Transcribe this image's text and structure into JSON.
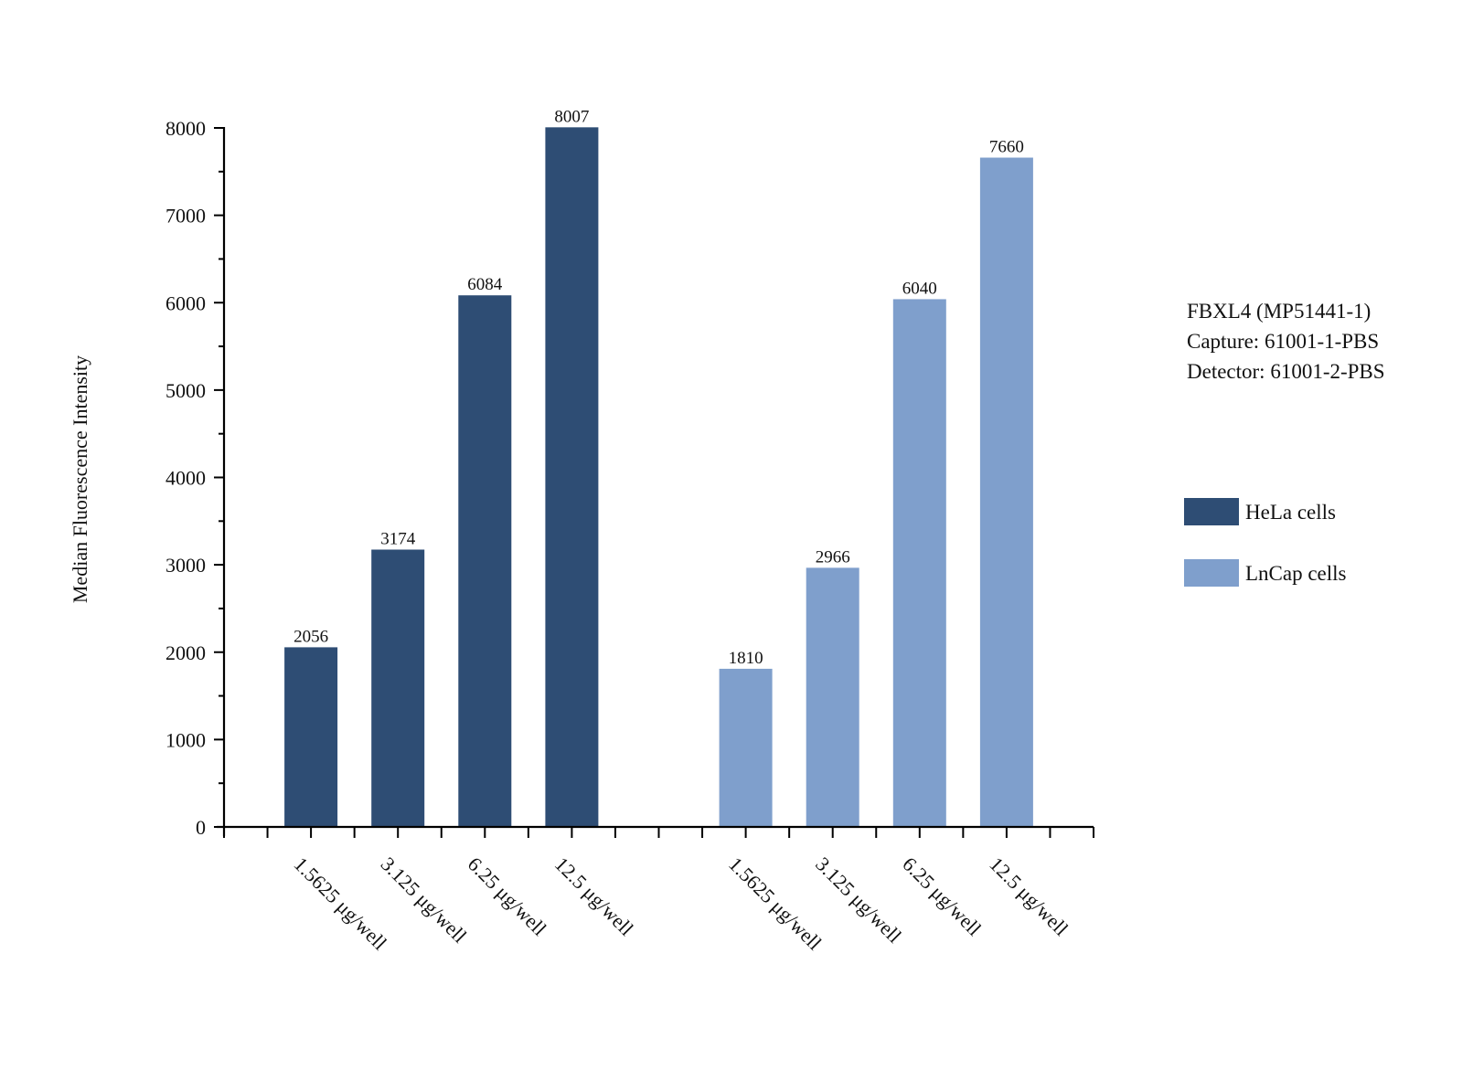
{
  "chart_data": {
    "type": "bar",
    "title": "",
    "xlabel": "",
    "ylabel": "Median Fluorescence Intensity",
    "ylim": [
      0,
      8000
    ],
    "yticks": [
      0,
      1000,
      2000,
      3000,
      4000,
      5000,
      6000,
      7000,
      8000
    ],
    "grid": false,
    "legend_position": "right",
    "info": [
      "FBXL4 (MP51441-1)",
      "Capture: 61001-1-PBS",
      "Detector: 61001-2-PBS"
    ],
    "categories": [
      "1.5625 μg/well",
      "3.125 μg/well",
      "6.25 μg/well",
      "12.5 μg/well"
    ],
    "series": [
      {
        "name": "HeLa cells",
        "color": "#2e4d74",
        "values": [
          2056,
          3174,
          6084,
          8007
        ]
      },
      {
        "name": "LnCap cells",
        "color": "#7f9fcc",
        "values": [
          1810,
          2966,
          6040,
          7660
        ]
      }
    ]
  }
}
